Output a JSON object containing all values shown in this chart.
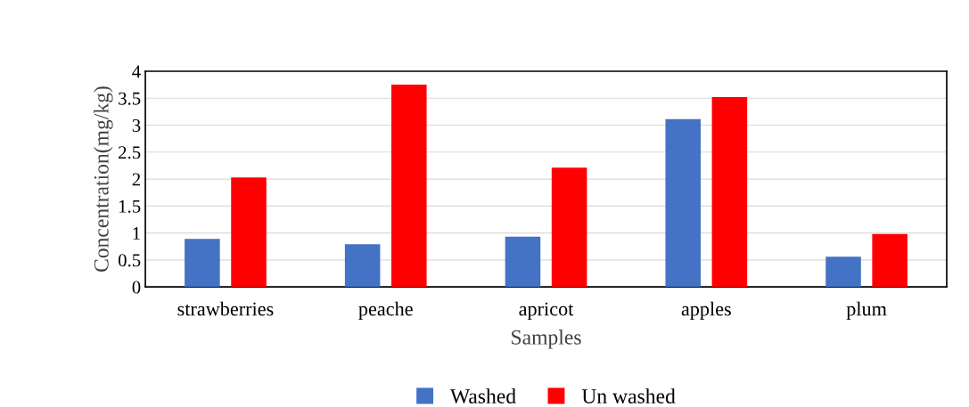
{
  "chart_data": {
    "type": "bar",
    "xlabel": "Samples",
    "ylabel": "Concentration(mg/kg)",
    "categories": [
      "strawberries",
      "peache",
      "apricot",
      "apples",
      "plum"
    ],
    "series": [
      {
        "name": "Washed",
        "color": "#4472c4",
        "values": [
          0.89,
          0.79,
          0.93,
          3.11,
          0.56
        ]
      },
      {
        "name": "Un washed",
        "color": "#ff0000",
        "values": [
          2.03,
          3.75,
          2.21,
          3.52,
          0.98
        ]
      }
    ],
    "ylim": [
      0,
      4
    ],
    "yticks": [
      0,
      0.5,
      1,
      1.5,
      2,
      2.5,
      3,
      3.5,
      4
    ],
    "grid": "y",
    "legend": "bottom"
  }
}
